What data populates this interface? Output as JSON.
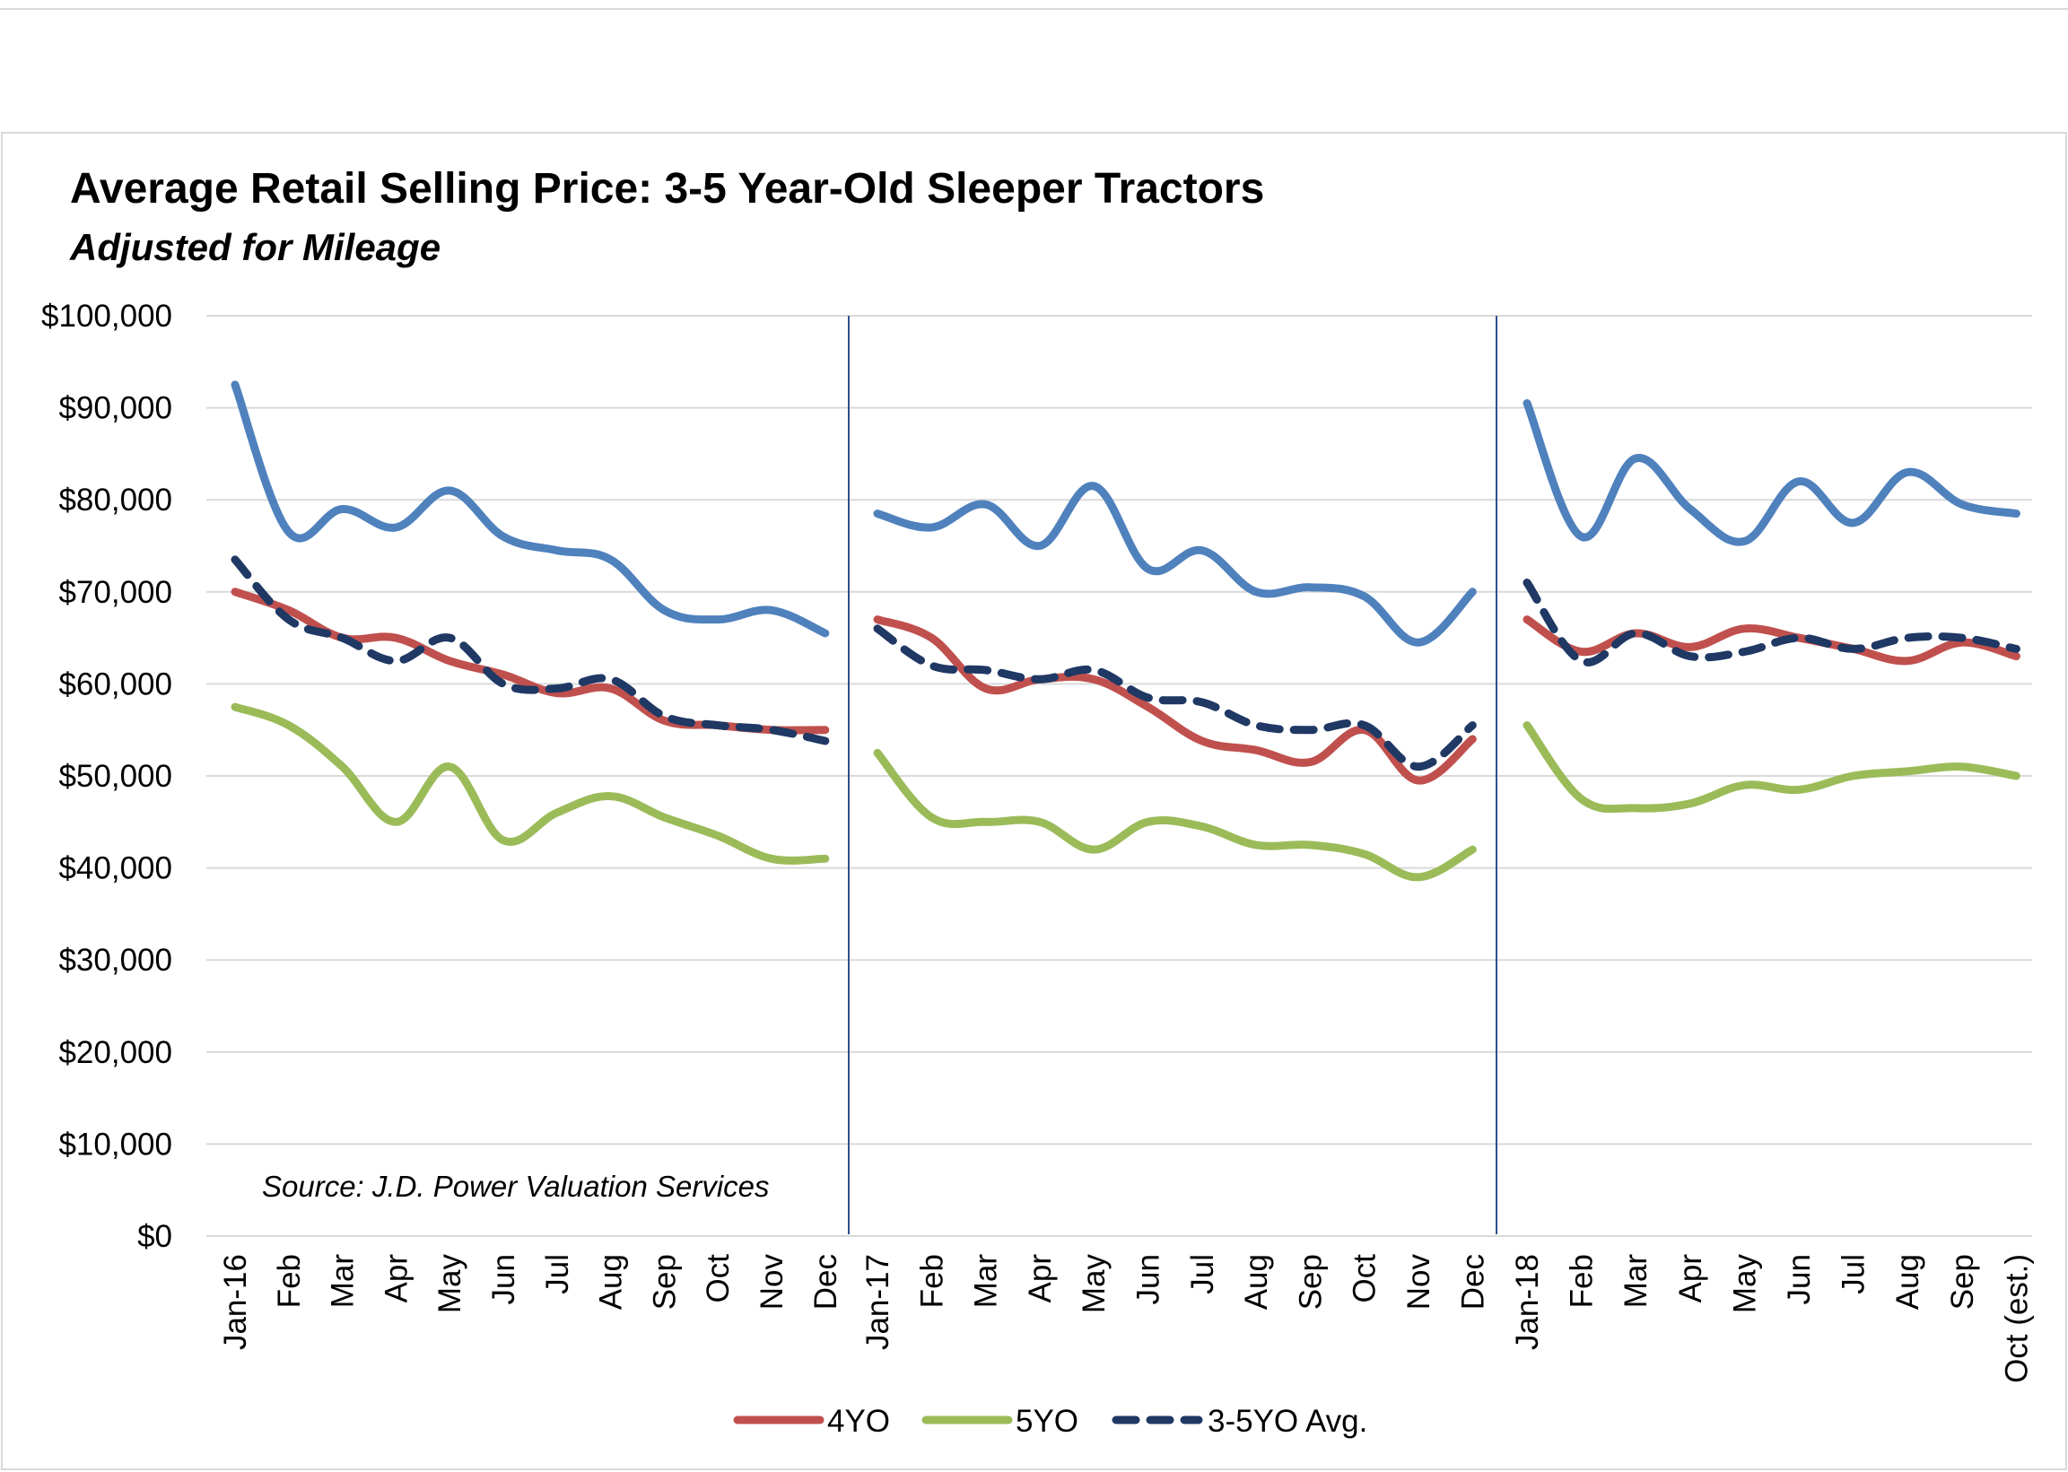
{
  "chart_data": {
    "type": "line",
    "title": "Average Retail Selling Price: 3-5 Year-Old Sleeper Tractors",
    "subtitle": "Adjusted for Mileage",
    "annotation": "Source: J.D. Power Valuation Services",
    "ylim": [
      0,
      100000
    ],
    "yticks": [
      0,
      10000,
      20000,
      30000,
      40000,
      50000,
      60000,
      70000,
      80000,
      90000,
      100000
    ],
    "ytick_labels": [
      "$0",
      "$10,000",
      "$20,000",
      "$30,000",
      "$40,000",
      "$50,000",
      "$60,000",
      "$70,000",
      "$80,000",
      "$90,000",
      "$100,000"
    ],
    "grid": true,
    "legend": "bottom",
    "segments": [
      {
        "categories": [
          "Jan-16",
          "Feb",
          "Mar",
          "Apr",
          "May",
          "Jun",
          "Jul",
          "Aug",
          "Sep",
          "Oct",
          "Nov",
          "Dec"
        ],
        "series": [
          {
            "key": "3yo",
            "values": [
              92500,
              76500,
              79000,
              77000,
              81000,
              76000,
              74500,
              73500,
              68000,
              67000,
              68000,
              65500
            ]
          },
          {
            "key": "4yo",
            "values": [
              70000,
              68000,
              65000,
              65000,
              62500,
              61000,
              59000,
              59500,
              56000,
              55500,
              55000,
              55000
            ]
          },
          {
            "key": "5yo",
            "values": [
              57500,
              55500,
              51000,
              45000,
              51000,
              43000,
              46000,
              47800,
              45500,
              43500,
              41000,
              41000
            ]
          },
          {
            "key": "avg",
            "values": [
              73500,
              67000,
              65000,
              62500,
              65000,
              60000,
              59500,
              60500,
              56500,
              55500,
              55000,
              53800
            ]
          }
        ]
      },
      {
        "categories": [
          "Jan-17",
          "Feb",
          "Mar",
          "Apr",
          "May",
          "Jun",
          "Jul",
          "Aug",
          "Sep",
          "Oct",
          "Nov",
          "Dec"
        ],
        "series": [
          {
            "key": "3yo",
            "values": [
              78500,
              77000,
              79500,
              75000,
              81500,
              72500,
              74500,
              70000,
              70500,
              69500,
              64500,
              70000
            ]
          },
          {
            "key": "4yo",
            "values": [
              67000,
              65000,
              59500,
              60500,
              60500,
              57500,
              53800,
              52800,
              51500,
              55000,
              49500,
              54000
            ]
          },
          {
            "key": "5yo",
            "values": [
              52500,
              45500,
              45000,
              45000,
              42000,
              45000,
              44500,
              42500,
              42500,
              41500,
              39000,
              42000
            ]
          },
          {
            "key": "avg",
            "values": [
              66000,
              62000,
              61500,
              60500,
              61500,
              58500,
              58000,
              55500,
              55000,
              55500,
              51000,
              55500
            ]
          }
        ]
      },
      {
        "categories": [
          "Jan-18",
          "Feb",
          "Mar",
          "Apr",
          "May",
          "Jun",
          "Jul",
          "Aug",
          "Sep",
          "Oct (est.)"
        ],
        "series": [
          {
            "key": "3yo",
            "values": [
              90500,
              76000,
              84500,
              79000,
              75500,
              82000,
              77500,
              83000,
              79500,
              78500
            ]
          },
          {
            "key": "4yo",
            "values": [
              67000,
              63500,
              65500,
              64000,
              66000,
              65000,
              63800,
              62500,
              64500,
              63000
            ]
          },
          {
            "key": "5yo",
            "values": [
              55500,
              47500,
              46500,
              47000,
              49000,
              48500,
              50000,
              50500,
              51000,
              50000
            ]
          },
          {
            "key": "avg",
            "values": [
              71000,
              62500,
              65500,
              63000,
              63500,
              65000,
              63800,
              65000,
              65000,
              63800
            ]
          }
        ]
      }
    ],
    "legend_entries": [
      {
        "key": "4yo",
        "name": "4YO"
      },
      {
        "key": "5yo",
        "name": "5YO"
      },
      {
        "key": "avg",
        "name": "3-5YO Avg."
      }
    ],
    "colors": {
      "3yo": "#4f81bd",
      "4yo": "#c0504d",
      "5yo": "#9bbb59",
      "avg": "#1f3864",
      "divider": "#2f4f8f",
      "grid": "#d9d9d9"
    }
  }
}
